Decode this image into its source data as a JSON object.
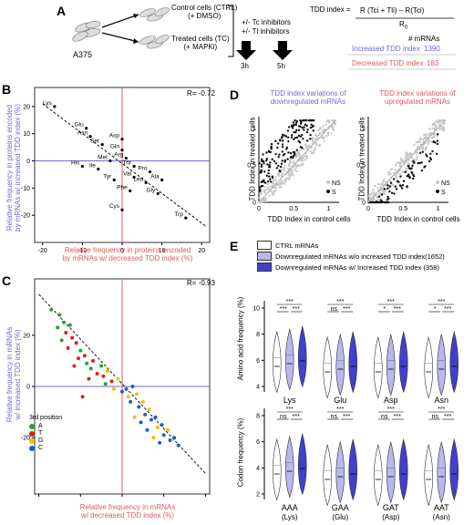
{
  "panels": {
    "A": {
      "label": "A",
      "cell_line": "A375",
      "ctrl_line1": "Control cells (CTRL)",
      "ctrl_line2": "(+ DMSO)",
      "tc_line1": "Treated cells (TC)",
      "tc_line2": "(+ MAPKi)",
      "inhib1": "+/- Tc inhibitors",
      "inhib2": "+/- Tl inhibitors",
      "time1": "3h",
      "time2": "5h",
      "formula_left": "TDD index =",
      "formula_num": "R (Tci + Tli) – R(Tci)",
      "formula_den": "R",
      "formula_den_sub": "0",
      "col_header": "# mRNAs",
      "rows": [
        {
          "label": "Increased TDD index",
          "value": "1390",
          "color": "#6b6bd6"
        },
        {
          "label": "Decreased TDD index",
          "value": "183",
          "color": "#e05a5a"
        }
      ]
    },
    "B": {
      "label": "B",
      "r_text": "R= -0.72",
      "xlabel1": "Relative frequency in proteins encoded",
      "xlabel2": "by mRNAs w/ decreased TDD index (%)",
      "ylabel1": "Relative frequency in proteins encoded",
      "ylabel2": "by mRNAs w/ increased TDD index (%)"
    },
    "C": {
      "label": "C",
      "r_text": "R= -0.93",
      "xlabel1": "Relative frequency in mRNAs",
      "xlabel2": "w/ decreased TDD index (%)",
      "ylabel1": "Relative frequency in mRNAs",
      "ylabel2": "w/ increased TDD index (%)",
      "legend_title": "3rd position",
      "legend": [
        {
          "label": "A",
          "color": "#2ca02c"
        },
        {
          "label": "T",
          "color": "#e02020"
        },
        {
          "label": "G",
          "color": "#f0c000"
        },
        {
          "label": "C",
          "color": "#2060c0"
        }
      ]
    },
    "D": {
      "label": "D",
      "title_left1": "TDD index variations of",
      "title_left2": "downregulated mRNAs",
      "title_right1": "TDD index variations of",
      "title_right2": "upregulated mRNAs",
      "ylabel1": "TDD Index in treated cells",
      "ylabel2": "TDD Index in treated cells",
      "xlabel1": "TDD Index in control cells",
      "xlabel2": "TDD Index in control cells",
      "legend_ns": "NS",
      "legend_s": "S",
      "ticks": [
        "0",
        "0.5",
        "1"
      ]
    },
    "E": {
      "label": "E",
      "legend": [
        {
          "label": "CTRL mRNAs",
          "color": "#ffffff"
        },
        {
          "label": "Downregulated mRNAs w/o increased TDD index(1652)",
          "color": "#b8b8ee"
        },
        {
          "label": "Downregulated mRNAs  w/ Increased TDD index (358)",
          "color": "#4040cc"
        }
      ],
      "top_ylabel": "Amino acid frequency (%)",
      "bottom_ylabel": "Codon frequency (%)",
      "top_groups": [
        "Lys",
        "Glu",
        "Asp",
        "Asn"
      ],
      "bottom_groups": [
        "AAA",
        "GAA",
        "GAT",
        "AAT"
      ],
      "bottom_groups_sub": [
        "(Lys)",
        "(Glu)",
        "(Asp)",
        "(Asn)"
      ],
      "top_yticks": [
        "4",
        "6",
        "8",
        "10"
      ],
      "bottom_yticks": [
        "2",
        "4",
        "6",
        "8"
      ],
      "sig_top": [
        [
          "***",
          "***",
          "***"
        ],
        [
          "***",
          "ns",
          "***"
        ],
        [
          "***",
          "*",
          "***"
        ],
        [
          "***",
          "*",
          "***"
        ]
      ],
      "sig_bottom": [
        [
          "***",
          "ns",
          "***"
        ],
        [
          "***",
          "ns",
          "***"
        ],
        [
          "***",
          "ns",
          "***"
        ],
        [
          "***",
          "ns",
          "***"
        ]
      ]
    }
  },
  "chart_data": [
    {
      "type": "scatter",
      "panel": "B",
      "title": "",
      "xlabel": "Relative frequency in proteins encoded by mRNAs w/ decreased TDD index (%)",
      "ylabel": "Relative frequency in proteins encoded by mRNAs w/ increased TDD index (%)",
      "xlim": [
        -22,
        22
      ],
      "ylim": [
        -30,
        27
      ],
      "xticks": [
        -20,
        -10,
        0,
        10,
        20
      ],
      "yticks": [
        -20,
        -10,
        0,
        10,
        20
      ],
      "points": [
        {
          "label": "Lys",
          "x": -17,
          "y": 20
        },
        {
          "label": "Glu",
          "x": -9,
          "y": 12
        },
        {
          "label": "Asn",
          "x": -8,
          "y": 9
        },
        {
          "label": "Asp",
          "x": 0,
          "y": 8
        },
        {
          "label": "Ser",
          "x": -5,
          "y": 6
        },
        {
          "label": "Gln",
          "x": 0,
          "y": 4
        },
        {
          "label": "Arg",
          "x": 1,
          "y": 1
        },
        {
          "label": "Met",
          "x": -3,
          "y": 0
        },
        {
          "label": "His",
          "x": -10,
          "y": -2
        },
        {
          "label": "Ile",
          "x": -6,
          "y": -3
        },
        {
          "label": "Thr",
          "x": 3,
          "y": -2
        },
        {
          "label": "Pro",
          "x": 7,
          "y": -4
        },
        {
          "label": "Tyr",
          "x": -2,
          "y": -7
        },
        {
          "label": "Val",
          "x": 3,
          "y": -6
        },
        {
          "label": "Leu",
          "x": 6,
          "y": -8
        },
        {
          "label": "Ala",
          "x": 10,
          "y": -7
        },
        {
          "label": "Phe",
          "x": 2,
          "y": -11
        },
        {
          "label": "Gly",
          "x": 9,
          "y": -12
        },
        {
          "label": "Cys",
          "x": 0,
          "y": -18
        },
        {
          "label": "Trp",
          "x": 16,
          "y": -21
        }
      ]
    },
    {
      "type": "scatter",
      "panel": "C",
      "title": "",
      "xlim": [
        -42,
        42
      ],
      "ylim": [
        -42,
        42
      ],
      "xticks": [
        -40,
        -20,
        0,
        20,
        40
      ],
      "yticks": [
        -20,
        0,
        20
      ],
      "points": [
        {
          "x": -34,
          "y": 30,
          "c": "A"
        },
        {
          "x": -30,
          "y": 28,
          "c": "A"
        },
        {
          "x": -28,
          "y": 25,
          "c": "A"
        },
        {
          "x": -31,
          "y": 23,
          "c": "A"
        },
        {
          "x": -27,
          "y": 21,
          "c": "T"
        },
        {
          "x": -25,
          "y": 24,
          "c": "A"
        },
        {
          "x": -24,
          "y": 19,
          "c": "T"
        },
        {
          "x": -22,
          "y": 17,
          "c": "T"
        },
        {
          "x": -29,
          "y": 18,
          "c": "A"
        },
        {
          "x": -26,
          "y": 15,
          "c": "T"
        },
        {
          "x": -20,
          "y": 14,
          "c": "A"
        },
        {
          "x": -21,
          "y": 11,
          "c": "T"
        },
        {
          "x": -18,
          "y": 12,
          "c": "T"
        },
        {
          "x": -17,
          "y": 9,
          "c": "A"
        },
        {
          "x": -23,
          "y": 8,
          "c": "T"
        },
        {
          "x": -15,
          "y": 7,
          "c": "A"
        },
        {
          "x": -14,
          "y": 10,
          "c": "T"
        },
        {
          "x": -12,
          "y": 5,
          "c": "T"
        },
        {
          "x": -10,
          "y": 8,
          "c": "A"
        },
        {
          "x": -9,
          "y": 4,
          "c": "T"
        },
        {
          "x": -16,
          "y": 3,
          "c": "T"
        },
        {
          "x": -7,
          "y": 6,
          "c": "G"
        },
        {
          "x": -5,
          "y": 2,
          "c": "T"
        },
        {
          "x": -8,
          "y": 1,
          "c": "A"
        },
        {
          "x": -4,
          "y": -1,
          "c": "G"
        },
        {
          "x": -19,
          "y": -4,
          "c": "T"
        },
        {
          "x": -2,
          "y": 3,
          "c": "G"
        },
        {
          "x": 0,
          "y": -2,
          "c": "C"
        },
        {
          "x": 2,
          "y": -1,
          "c": "C"
        },
        {
          "x": 3,
          "y": -4,
          "c": "G"
        },
        {
          "x": 5,
          "y": 0,
          "c": "C"
        },
        {
          "x": 4,
          "y": -6,
          "c": "C"
        },
        {
          "x": 7,
          "y": -3,
          "c": "G"
        },
        {
          "x": 8,
          "y": -8,
          "c": "C"
        },
        {
          "x": 10,
          "y": -6,
          "c": "G"
        },
        {
          "x": 11,
          "y": -11,
          "c": "C"
        },
        {
          "x": 13,
          "y": -9,
          "c": "G"
        },
        {
          "x": 14,
          "y": -13,
          "c": "C"
        },
        {
          "x": 16,
          "y": -12,
          "c": "C"
        },
        {
          "x": 17,
          "y": -16,
          "c": "G"
        },
        {
          "x": 19,
          "y": -15,
          "c": "C"
        },
        {
          "x": 20,
          "y": -19,
          "c": "C"
        },
        {
          "x": 22,
          "y": -17,
          "c": "G"
        },
        {
          "x": 23,
          "y": -21,
          "c": "C"
        },
        {
          "x": 18,
          "y": -22,
          "c": "C"
        },
        {
          "x": 25,
          "y": -20,
          "c": "C"
        },
        {
          "x": 15,
          "y": -20,
          "c": "G"
        },
        {
          "x": 12,
          "y": -17,
          "c": "C"
        },
        {
          "x": 9,
          "y": -14,
          "c": "C"
        },
        {
          "x": 6,
          "y": -12,
          "c": "G"
        },
        {
          "x": 27,
          "y": -23,
          "c": "C"
        }
      ]
    }
  ]
}
